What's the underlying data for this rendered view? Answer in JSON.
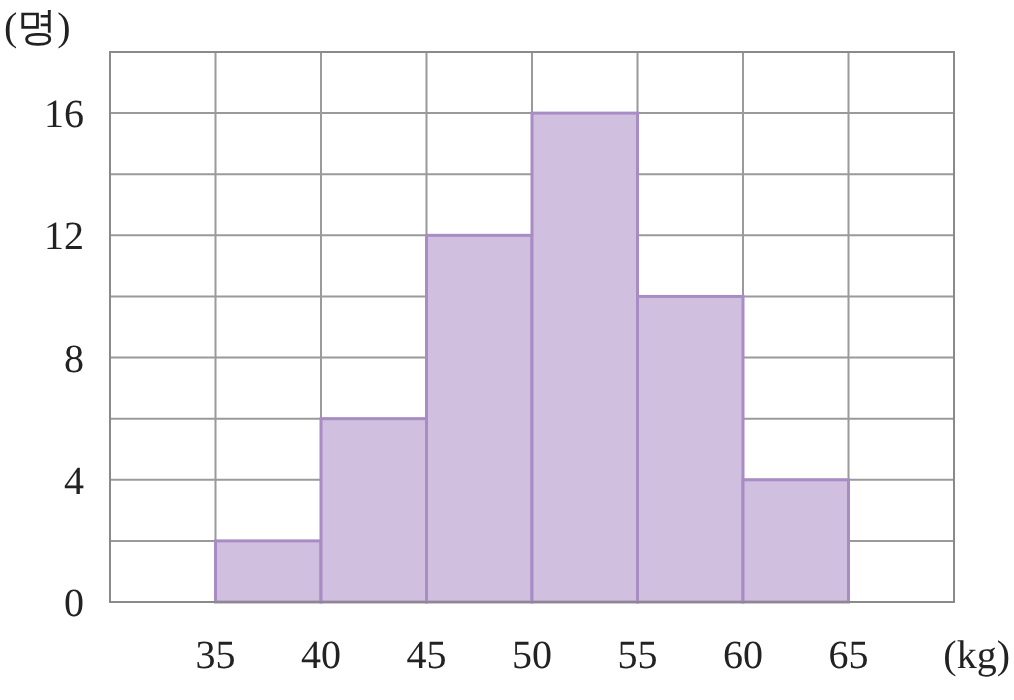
{
  "chart_data": {
    "type": "histogram",
    "xlabel": "(kg)",
    "ylabel": "(명)",
    "bins": [
      35,
      40,
      45,
      50,
      55,
      60,
      65
    ],
    "values": [
      2,
      6,
      12,
      16,
      10,
      4
    ],
    "color": "#d1bfe0",
    "xlim": [
      30,
      70
    ],
    "ylim": [
      0,
      18
    ],
    "xticks": [
      {
        "value": 30,
        "label": null
      },
      35,
      40,
      45,
      50,
      55,
      60,
      65,
      {
        "value": 70,
        "label": null
      }
    ],
    "yticks": [
      {
        "value": 0,
        "label": "0"
      },
      {
        "value": 2,
        "label": null
      },
      4,
      {
        "value": 6,
        "label": null
      },
      8,
      {
        "value": 10,
        "label": null
      },
      12,
      {
        "value": 14,
        "label": null
      },
      16,
      {
        "value": 18,
        "label": null
      }
    ],
    "grid": true
  }
}
